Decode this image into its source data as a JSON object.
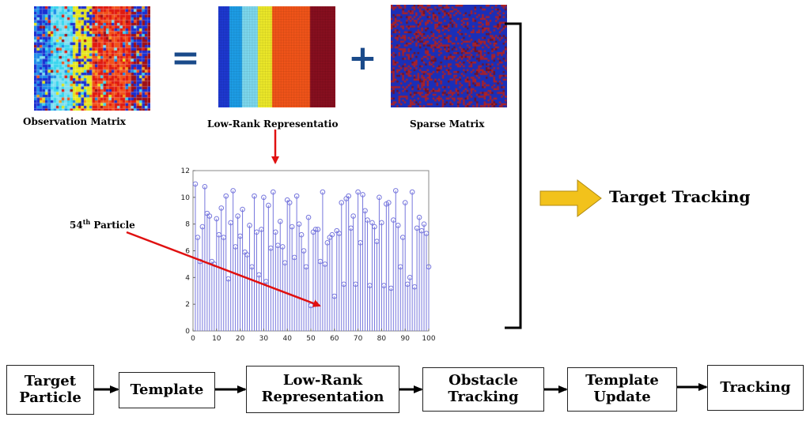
{
  "matrices": {
    "observation_label": "Observation Matrix",
    "lowrank_label": "Low-Rank Representatio",
    "sparse_label": "Sparse Matrix",
    "equals_sign": "=",
    "plus_sign": "+"
  },
  "annotation": {
    "particle_number": "54",
    "particle_suffix": "th",
    "particle_word": "Particle"
  },
  "target_tracking_label": "Target Tracking",
  "flow": {
    "steps": [
      {
        "line1": "Target",
        "line2": "Particle"
      },
      {
        "line1": "Template",
        "line2": ""
      },
      {
        "line1": "Low-Rank",
        "line2": "Representation"
      },
      {
        "line1": "Obstacle",
        "line2": "Tracking"
      },
      {
        "line1": "Template",
        "line2": "Update"
      },
      {
        "line1": "Tracking",
        "line2": ""
      }
    ]
  },
  "colors": {
    "stem": "#7777dd",
    "red_arrow": "#e01010",
    "yellow_arrow": "#f2c21b",
    "operator": "#1a4a8a"
  },
  "chart_data": {
    "type": "stem",
    "title": "",
    "xlabel": "",
    "ylabel": "",
    "xlim": [
      0,
      100
    ],
    "ylim": [
      0,
      12
    ],
    "xticks": [
      0,
      10,
      20,
      30,
      40,
      50,
      60,
      70,
      80,
      90,
      100
    ],
    "yticks": [
      0,
      2,
      4,
      6,
      8,
      10,
      12
    ],
    "values": [
      11.0,
      7.0,
      5.2,
      7.8,
      10.8,
      8.8,
      8.6,
      5.2,
      5.0,
      8.4,
      7.2,
      9.2,
      7.0,
      10.1,
      3.9,
      8.1,
      10.5,
      6.3,
      8.6,
      7.1,
      9.1,
      5.9,
      5.7,
      7.9,
      4.8,
      10.1,
      7.4,
      4.2,
      7.6,
      10.0,
      3.7,
      9.4,
      6.2,
      10.4,
      7.4,
      6.4,
      8.2,
      6.3,
      5.1,
      9.8,
      9.6,
      7.8,
      5.5,
      10.1,
      8.0,
      7.2,
      6.0,
      4.8,
      8.5,
      1.9,
      7.4,
      7.6,
      7.6,
      5.2,
      10.4,
      5.0,
      6.6,
      7.0,
      7.2,
      2.6,
      7.5,
      7.3,
      9.6,
      3.5,
      9.9,
      10.1,
      7.7,
      8.6,
      3.5,
      10.4,
      6.6,
      10.2,
      9.0,
      8.3,
      3.4,
      8.1,
      7.8,
      6.7,
      10.0,
      8.1,
      3.4,
      9.5,
      9.6,
      3.2,
      8.3,
      10.5,
      7.9,
      4.8,
      7.0,
      9.6,
      3.5,
      4.0,
      10.4,
      3.3,
      7.7,
      8.5,
      7.5,
      8.0,
      7.3,
      4.8
    ],
    "highlight_index": 54
  }
}
